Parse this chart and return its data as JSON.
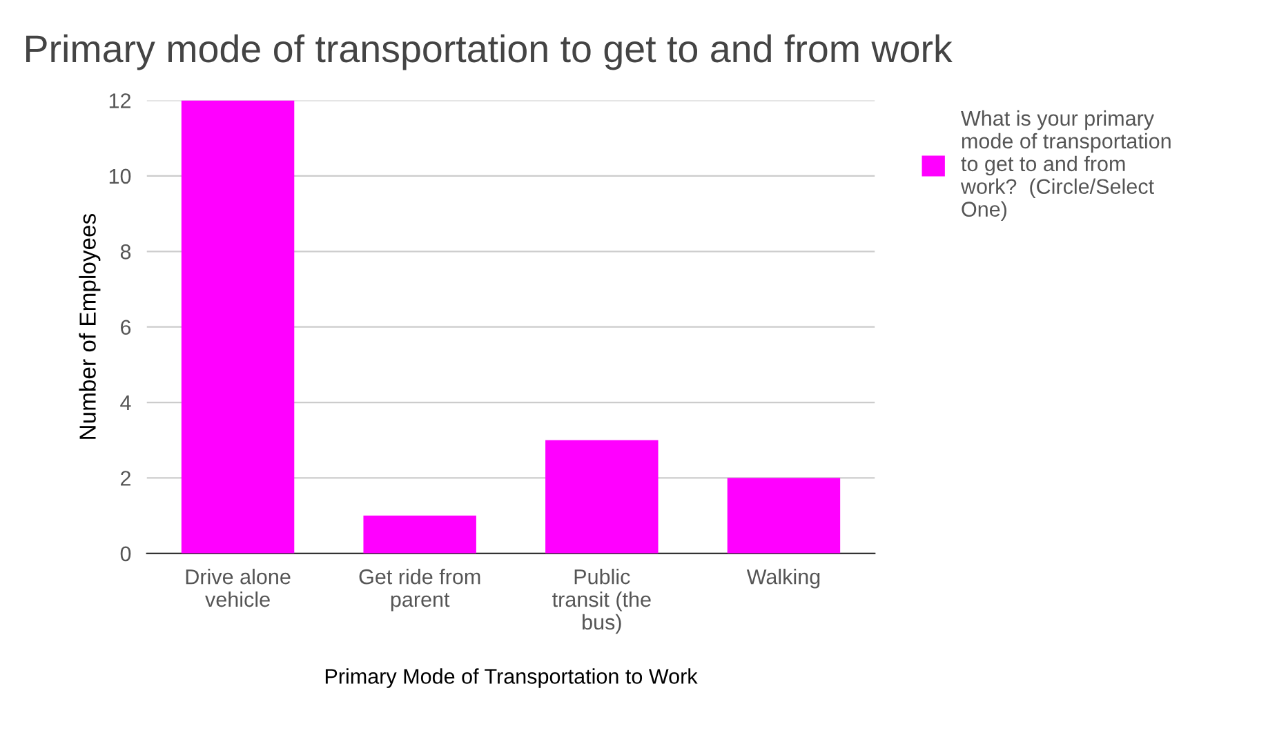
{
  "chart_data": {
    "type": "bar",
    "title": "Primary mode of transportation to get to and from work",
    "xlabel": "Primary Mode of Transportation to Work",
    "ylabel": "Number of Employees",
    "categories": [
      "Drive alone\nvehicle",
      "Get ride from\nparent",
      "Public\ntransit (the\nbus)",
      "Walking"
    ],
    "series": [
      {
        "name": "What is your primary\nmode of transportation\nto get to and from\nwork?  (Circle/Select\nOne)",
        "color": "#ff00ff",
        "values": [
          12,
          1,
          3,
          2
        ]
      }
    ],
    "ylim": [
      0,
      12
    ],
    "yticks": [
      0,
      2,
      4,
      6,
      8,
      10,
      12
    ],
    "grid": "y",
    "legend": "top right"
  }
}
